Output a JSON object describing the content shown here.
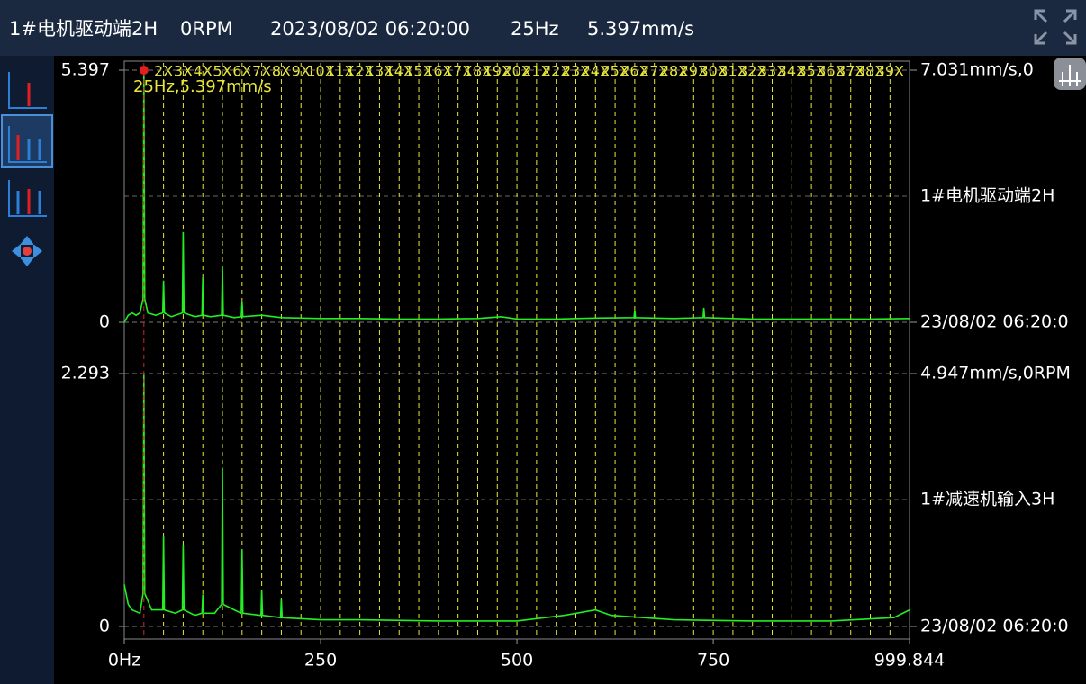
{
  "header": {
    "channel": "1#电机驱动端2H",
    "rpm": "0RPM",
    "time": "2023/08/02 06:20:00",
    "freq": "25Hz",
    "amplitude": "5.397mm/s"
  },
  "chart_data": [
    {
      "type": "line",
      "series": [
        {
          "name": "1#电机驱动端2H",
          "color": "#22ee22",
          "x": [
            0,
            5,
            10,
            15,
            20,
            24,
            25,
            26,
            30,
            40,
            49,
            50,
            51,
            60,
            74,
            75,
            76,
            90,
            99,
            100,
            101,
            110,
            124,
            125,
            126,
            140,
            149,
            150,
            151,
            175,
            200,
            250,
            300,
            350,
            400,
            450,
            480,
            500,
            550,
            600,
            649,
            650,
            651,
            700,
            737,
            738,
            739,
            800,
            850,
            900,
            950,
            999.844
          ],
          "values": [
            0,
            0.15,
            0.2,
            0.15,
            0.2,
            0.5,
            5.397,
            0.5,
            0.2,
            0.15,
            0.2,
            0.89,
            0.2,
            0.12,
            0.2,
            1.93,
            0.2,
            0.12,
            0.15,
            0.96,
            0.15,
            0.12,
            0.15,
            1.21,
            0.15,
            0.1,
            0.12,
            0.44,
            0.12,
            0.15,
            0.1,
            0.08,
            0.08,
            0.07,
            0.07,
            0.08,
            0.12,
            0.07,
            0.07,
            0.09,
            0.1,
            0.25,
            0.1,
            0.08,
            0.1,
            0.31,
            0.1,
            0.07,
            0.07,
            0.07,
            0.07,
            0.08
          ]
        }
      ],
      "xlim": [
        0,
        999.844
      ],
      "ylim": [
        0,
        5.397
      ],
      "yticks": [
        0,
        5.397
      ],
      "grid": true,
      "annotations": [
        "7.031mm/s,0",
        "23/08/02 06:20:0"
      ],
      "cursor": {
        "value": 25,
        "label": "25Hz,5.397mm/s"
      },
      "harmonics": [
        {
          "value": 50,
          "label": "2X"
        },
        {
          "value": 75,
          "label": "3X"
        },
        {
          "value": 100,
          "label": "4X"
        },
        {
          "value": 125,
          "label": "5X"
        },
        {
          "value": 150,
          "label": "6X"
        },
        {
          "value": 175,
          "label": "7X"
        },
        {
          "value": 200,
          "label": "8X"
        },
        {
          "value": 225,
          "label": "9X"
        },
        {
          "value": 250,
          "label": "10X"
        },
        {
          "value": 275,
          "label": "11X"
        },
        {
          "value": 300,
          "label": "12X"
        },
        {
          "value": 325,
          "label": "13X"
        },
        {
          "value": 350,
          "label": "14X"
        },
        {
          "value": 375,
          "label": "15X"
        },
        {
          "value": 400,
          "label": "16X"
        },
        {
          "value": 425,
          "label": "17X"
        },
        {
          "value": 450,
          "label": "18X"
        },
        {
          "value": 475,
          "label": "19X"
        },
        {
          "value": 500,
          "label": "20X"
        },
        {
          "value": 525,
          "label": "21X"
        },
        {
          "value": 550,
          "label": "22X"
        },
        {
          "value": 575,
          "label": "23X"
        },
        {
          "value": 600,
          "label": "24X"
        },
        {
          "value": 625,
          "label": "25X"
        },
        {
          "value": 650,
          "label": "26X"
        },
        {
          "value": 675,
          "label": "27X"
        },
        {
          "value": 700,
          "label": "28X"
        },
        {
          "value": 725,
          "label": "29X"
        },
        {
          "value": 750,
          "label": "30X"
        },
        {
          "value": 775,
          "label": "31X"
        },
        {
          "value": 800,
          "label": "32X"
        },
        {
          "value": 825,
          "label": "33X"
        },
        {
          "value": 850,
          "label": "34X"
        },
        {
          "value": 875,
          "label": "35X"
        },
        {
          "value": 900,
          "label": "36X"
        },
        {
          "value": 925,
          "label": "37X"
        },
        {
          "value": 950,
          "label": "38X"
        },
        {
          "value": 975,
          "label": "39X"
        }
      ]
    },
    {
      "type": "line",
      "series": [
        {
          "name": "1#减速机输入3H",
          "color": "#22ee22",
          "x": [
            0,
            5,
            10,
            20,
            24,
            25,
            26,
            35,
            49,
            50,
            51,
            65,
            74,
            75,
            76,
            90,
            99,
            100,
            101,
            115,
            124,
            125,
            126,
            140,
            149,
            150,
            151,
            174,
            175,
            176,
            199,
            200,
            201,
            250,
            300,
            400,
            500,
            560,
            600,
            620,
            700,
            800,
            900,
            980,
            999.844
          ],
          "values": [
            0.38,
            0.2,
            0.15,
            0.12,
            0.3,
            2.293,
            0.3,
            0.15,
            0.15,
            0.82,
            0.15,
            0.12,
            0.15,
            0.74,
            0.15,
            0.1,
            0.12,
            0.29,
            0.12,
            0.12,
            0.2,
            1.44,
            0.2,
            0.15,
            0.12,
            0.7,
            0.12,
            0.1,
            0.33,
            0.1,
            0.08,
            0.25,
            0.08,
            0.06,
            0.06,
            0.05,
            0.05,
            0.1,
            0.15,
            0.1,
            0.06,
            0.05,
            0.05,
            0.08,
            0.15
          ]
        }
      ],
      "xlim": [
        0,
        999.844
      ],
      "ylim": [
        0,
        2.293
      ],
      "yticks": [
        0,
        2.293
      ],
      "grid": true,
      "xticks": [
        {
          "value": 0,
          "label": "0Hz"
        },
        250,
        500,
        750,
        999.844
      ],
      "annotations": [
        "4.947mm/s,0RPM",
        "23/08/02 06:20:0"
      ]
    }
  ]
}
